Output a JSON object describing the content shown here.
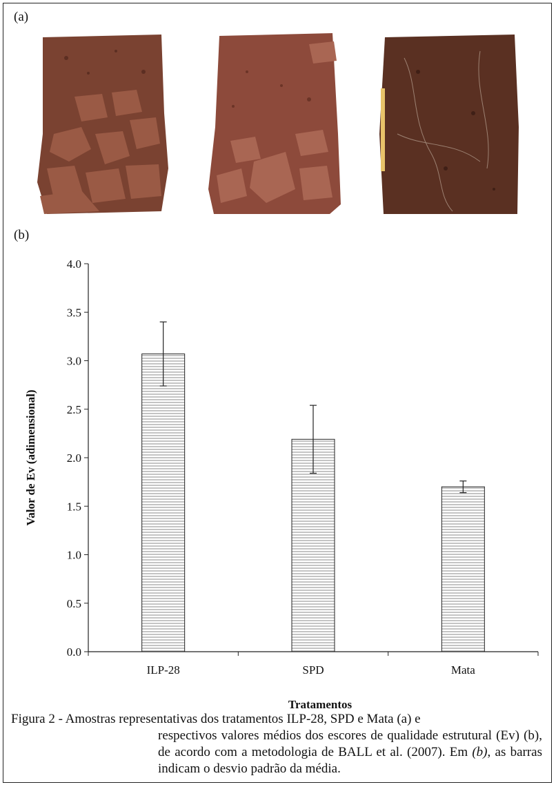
{
  "panels": {
    "a_label": "(a)",
    "b_label": "(b)"
  },
  "photos": [
    {
      "name": "soil-sample-ilp28",
      "base": "#7a4231"
    },
    {
      "name": "soil-sample-spd",
      "base": "#8d4a3b"
    },
    {
      "name": "soil-sample-mata",
      "base": "#5a3022"
    }
  ],
  "chart_data": {
    "type": "bar",
    "categories": [
      "ILP-28",
      "SPD",
      "Mata"
    ],
    "values": [
      3.07,
      2.19,
      1.7
    ],
    "errors": [
      0.33,
      0.35,
      0.06
    ],
    "xlabel": "Tratamentos",
    "ylabel": "Valor de Ev (adimensional)",
    "ylim": [
      0,
      4
    ],
    "yticks": [
      "0.0",
      "0.5",
      "1.0",
      "1.5",
      "2.0",
      "2.5",
      "3.0",
      "3.5",
      "4.0"
    ],
    "grid": false,
    "bar_fill": "horizontal-stripes"
  },
  "caption": {
    "lead": "Figura 2 - ",
    "line1": "Amostras representativas dos tratamentos ILP-28, SPD e Mata (a) e",
    "rest_1": "respectivos valores médios dos escores de qualidade estrutural (Ev) (b), de",
    "rest_2": "acordo com a metodologia de BALL et al. (2007). Em ",
    "rest_2_italic": "(b)",
    "rest_2_end": ", as barras indicam",
    "rest_3": "o desvio padrão da média."
  }
}
